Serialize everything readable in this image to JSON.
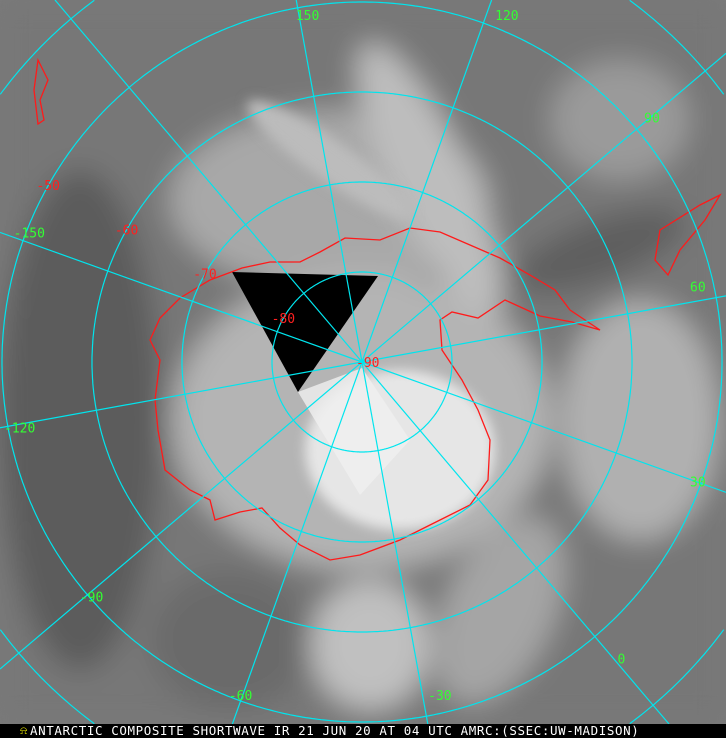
{
  "caption": "ANTARCTIC COMPOSITE SHORTWAVE IR 21 JUN 20 AT 04 UTC AMRC:(SSEC:UW-MADISON)",
  "colors": {
    "grid": "#00e5ee",
    "coastline": "#ff1a1a",
    "longitude_labels": "#33ff33",
    "latitude_labels": "#ff2020",
    "background": "#7a7a7a",
    "no_data": "#000000"
  },
  "projection": "polar-stereographic-south",
  "latitude_labels": [
    "-50",
    "-60",
    "-70",
    "-80",
    "-90"
  ],
  "latitudes": [
    -50,
    -60,
    -70,
    -80
  ],
  "longitude_labels": [
    {
      "lon": 150,
      "text": "150"
    },
    {
      "lon": 120,
      "text": "120"
    },
    {
      "lon": 90,
      "text": "90"
    },
    {
      "lon": 60,
      "text": "60"
    },
    {
      "lon": 30,
      "text": "30"
    },
    {
      "lon": 0,
      "text": "0"
    },
    {
      "lon": -30,
      "text": "-30"
    },
    {
      "lon": -60,
      "text": "-60"
    },
    {
      "lon": -90,
      "text": "-90"
    },
    {
      "lon": -120,
      "text": "-120"
    },
    {
      "lon": -150,
      "text": "-150"
    }
  ]
}
